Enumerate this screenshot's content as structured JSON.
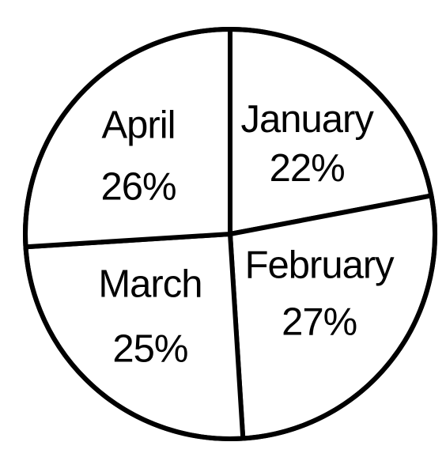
{
  "chart_data": {
    "type": "pie",
    "categories": [
      "January",
      "February",
      "March",
      "April"
    ],
    "values": [
      22,
      27,
      25,
      26
    ],
    "value_labels": [
      "22%",
      "27%",
      "25%",
      "26%"
    ],
    "colors": {
      "fill": "#ffffff",
      "stroke": "#000000"
    },
    "title": "",
    "legend": false
  }
}
